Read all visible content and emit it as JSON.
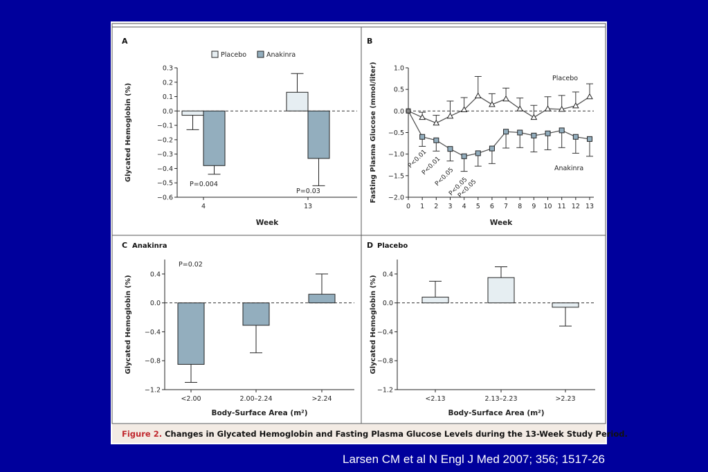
{
  "figure": {
    "caption_label": "Figure 2.",
    "caption_text": "Changes in Glycated Hemoglobin and Fasting Plasma Glucose Levels during the 13-Week Study Period.",
    "citation": "Larsen CM et al N Engl J Med 2007; 356; 1517-26"
  },
  "colors": {
    "placebo_fill": "#e6eef2",
    "anakinra_fill": "#93aebe",
    "axis": "#222222",
    "caption_red": "#c0272d",
    "caption_bg": "#f3ebe4"
  },
  "chart_data": [
    {
      "panel": "A",
      "type": "bar",
      "title": "",
      "xlabel": "Week",
      "ylabel": "Glycated Hemoglobin (%)",
      "ylim": [
        -0.6,
        0.3
      ],
      "yticks": [
        "0.3",
        "0.2",
        "0.1",
        "0.0",
        "−0.1",
        "−0.2",
        "−0.3",
        "−0.4",
        "−0.5",
        "−0.6"
      ],
      "ytick_values": [
        0.3,
        0.2,
        0.1,
        0.0,
        -0.1,
        -0.2,
        -0.3,
        -0.4,
        -0.5,
        -0.6
      ],
      "categories": [
        "4",
        "13"
      ],
      "legend": [
        "Placebo",
        "Anakinra"
      ],
      "series": [
        {
          "name": "Placebo",
          "values": [
            -0.03,
            0.13
          ],
          "error": [
            0.1,
            0.13
          ]
        },
        {
          "name": "Anakinra",
          "values": [
            -0.38,
            -0.33
          ],
          "error": [
            0.06,
            0.19
          ]
        }
      ],
      "annotations": [
        "P=0.004",
        "P=0.03"
      ]
    },
    {
      "panel": "B",
      "type": "line",
      "xlabel": "Week",
      "ylabel": "Fasting Plasma Glucose (mmol/liter)",
      "ylim": [
        -2.0,
        1.0
      ],
      "yticks": [
        "1.0",
        "0.5",
        "0.0",
        "−0.5",
        "−1.0",
        "−1.5",
        "−2.0"
      ],
      "ytick_values": [
        1.0,
        0.5,
        0.0,
        -0.5,
        -1.0,
        -1.5,
        -2.0
      ],
      "x": [
        0,
        1,
        2,
        3,
        4,
        5,
        6,
        7,
        8,
        9,
        10,
        11,
        12,
        13
      ],
      "xticks": [
        "0",
        "1",
        "2",
        "3",
        "4",
        "5",
        "6",
        "7",
        "8",
        "9",
        "10",
        "11",
        "12",
        "13"
      ],
      "series": [
        {
          "name": "Placebo",
          "values": [
            0.0,
            -0.15,
            -0.28,
            -0.12,
            0.03,
            0.35,
            0.15,
            0.28,
            0.05,
            -0.15,
            0.05,
            0.04,
            0.12,
            0.33
          ],
          "error": [
            0,
            0.12,
            0.18,
            0.35,
            0.28,
            0.45,
            0.25,
            0.25,
            0.25,
            0.28,
            0.28,
            0.32,
            0.32,
            0.3
          ]
        },
        {
          "name": "Anakinra",
          "values": [
            0.0,
            -0.6,
            -0.68,
            -0.88,
            -1.05,
            -0.98,
            -0.87,
            -0.48,
            -0.5,
            -0.57,
            -0.52,
            -0.45,
            -0.6,
            -0.65
          ],
          "error": [
            0,
            0.22,
            0.25,
            0.28,
            0.35,
            0.3,
            0.35,
            0.38,
            0.35,
            0.38,
            0.38,
            0.4,
            0.38,
            0.4
          ]
        }
      ],
      "annotations": [
        "P<0.01",
        "P<0.01",
        "P<0.05",
        "P<0.05",
        "P<0.05"
      ]
    },
    {
      "panel": "C",
      "title": "Anakinra",
      "type": "bar",
      "xlabel": "Body-Surface Area (m²)",
      "ylabel": "Glycated Hemoglobin (%)",
      "ylim": [
        -1.2,
        0.6
      ],
      "yticks": [
        "0.4",
        "0.0",
        "−0.4",
        "−0.8",
        "−1.2"
      ],
      "ytick_values": [
        0.4,
        0.0,
        -0.4,
        -0.8,
        -1.2
      ],
      "categories": [
        "<2.00",
        "2.00–2.24",
        ">2.24"
      ],
      "values": [
        -0.85,
        -0.31,
        0.12
      ],
      "error": [
        0.25,
        0.38,
        0.28
      ],
      "annotations": [
        "P=0.02"
      ]
    },
    {
      "panel": "D",
      "title": "Placebo",
      "type": "bar",
      "xlabel": "Body-Surface Area (m²)",
      "ylabel": "Glycated Hemoglobin (%)",
      "ylim": [
        -1.2,
        0.6
      ],
      "yticks": [
        "0.4",
        "0.0",
        "−0.4",
        "−0.8",
        "−1.2"
      ],
      "ytick_values": [
        0.4,
        0.0,
        -0.4,
        -0.8,
        -1.2
      ],
      "categories": [
        "<2.13",
        "2.13–2.23",
        ">2.23"
      ],
      "values": [
        0.08,
        0.35,
        -0.06
      ],
      "error": [
        0.22,
        0.15,
        0.26
      ]
    }
  ]
}
